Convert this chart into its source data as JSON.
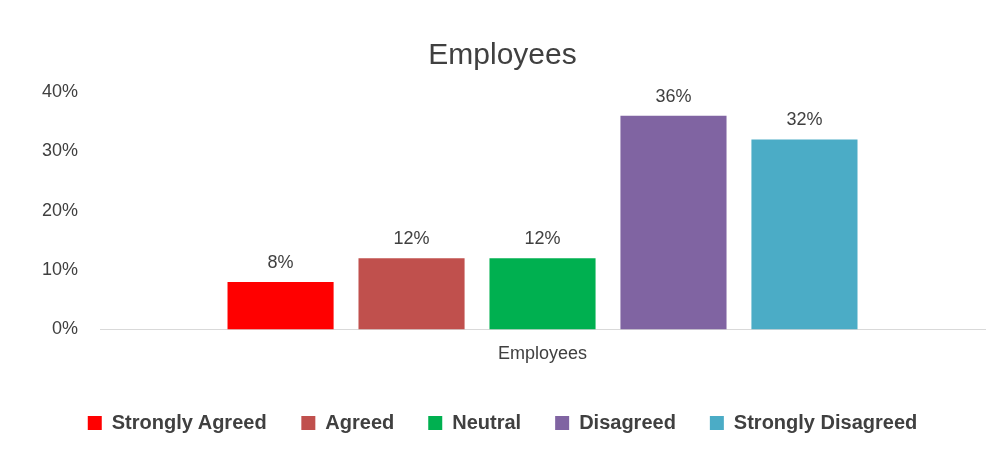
{
  "chart_data": {
    "type": "bar",
    "title": "Employees",
    "categories": [
      "Employees"
    ],
    "series": [
      {
        "name": "Strongly Agreed",
        "color": "#ff0000",
        "values": [
          8
        ],
        "value_labels": [
          "8%"
        ]
      },
      {
        "name": "Agreed",
        "color": "#c0504d",
        "values": [
          12
        ],
        "value_labels": [
          "12%"
        ]
      },
      {
        "name": "Neutral",
        "color": "#00b050",
        "values": [
          12
        ],
        "value_labels": [
          "12%"
        ]
      },
      {
        "name": "Disagreed",
        "color": "#8064a2",
        "values": [
          36
        ],
        "value_labels": [
          "36%"
        ]
      },
      {
        "name": "Strongly Disagreed",
        "color": "#4bacc6",
        "values": [
          32
        ],
        "value_labels": [
          "32%"
        ]
      }
    ],
    "ylim": [
      0,
      40
    ],
    "yticks": [
      {
        "value": 0,
        "label": "0%"
      },
      {
        "value": 10,
        "label": "10%"
      },
      {
        "value": 20,
        "label": "20%"
      },
      {
        "value": 30,
        "label": "30%"
      },
      {
        "value": 40,
        "label": "40%"
      }
    ],
    "legend": "bottom"
  }
}
